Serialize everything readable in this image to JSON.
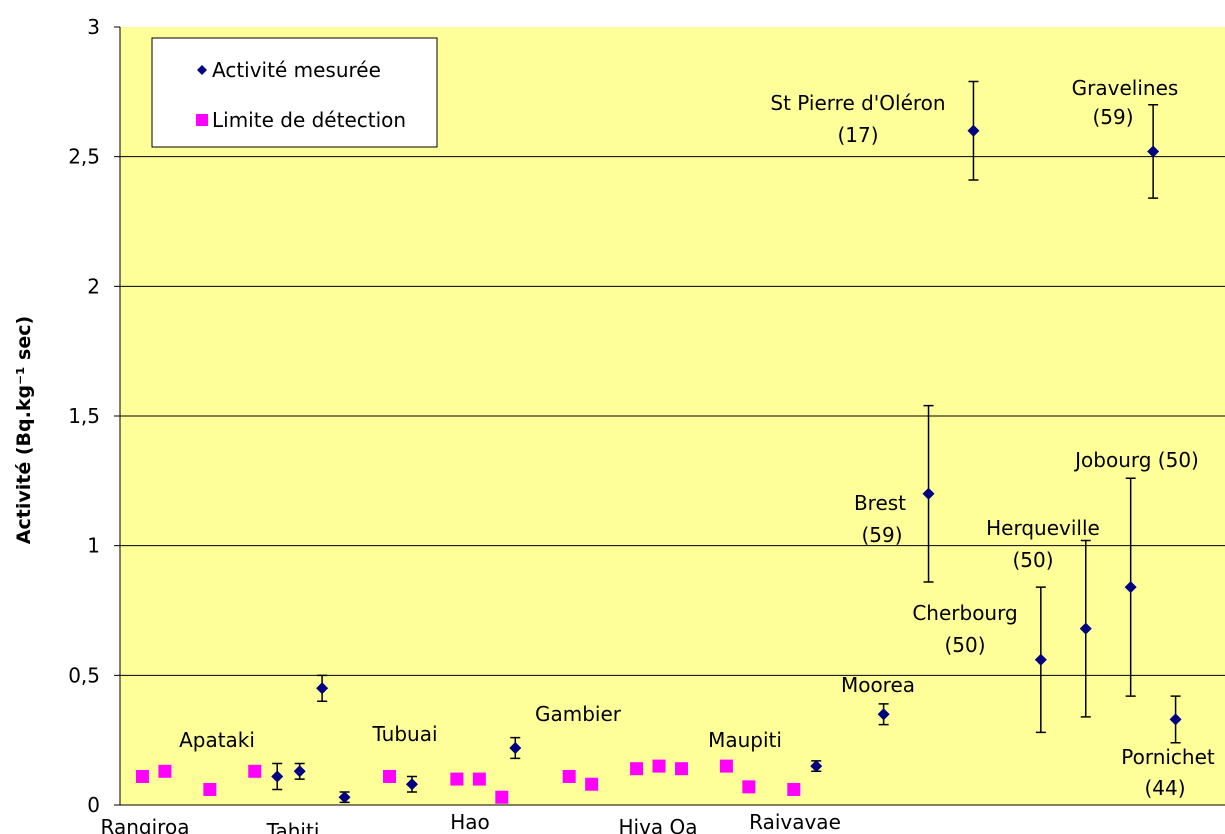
{
  "chart_data": {
    "type": "scatter",
    "y_label": "Activité (Bq.kg⁻¹ sec)",
    "ylim": [
      0,
      3
    ],
    "yticks": [
      0,
      {
        "value": 0.5,
        "label": "0,5"
      },
      1,
      {
        "value": 1.5,
        "label": "1,5"
      },
      2,
      {
        "value": 2.5,
        "label": "2,5"
      },
      3
    ],
    "xlim": [
      0,
      49.2
    ],
    "grid": true,
    "background": "#ffff99",
    "legend": "top-left",
    "series": [
      {
        "name": "Activité mesurée",
        "color": "#000080",
        "marker": "diamond",
        "x": [
          7,
          8,
          9,
          10,
          13,
          17.6,
          31,
          34,
          36,
          38,
          41,
          43,
          45,
          46,
          47
        ],
        "values": [
          0.11,
          0.13,
          0.45,
          0.03,
          0.08,
          0.22,
          0.15,
          0.35,
          1.2,
          2.6,
          0.56,
          0.68,
          0.84,
          2.52,
          0.33
        ],
        "errors": [
          0.05,
          0.03,
          0.05,
          0.02,
          0.03,
          0.04,
          0.02,
          0.04,
          0.34,
          0.19,
          0.28,
          0.34,
          0.42,
          0.18,
          0.09
        ]
      },
      {
        "name": "Limite de détection",
        "color": "#ff00ff",
        "marker": "square",
        "x": [
          1,
          2,
          4,
          6,
          12,
          15,
          16,
          17,
          20,
          21,
          23,
          24,
          25,
          27,
          28,
          30
        ],
        "values": [
          0.11,
          0.13,
          0.06,
          0.13,
          0.11,
          0.1,
          0.1,
          0.03,
          0.11,
          0.08,
          0.14,
          0.15,
          0.14,
          0.15,
          0.07,
          0.06
        ]
      }
    ],
    "annotations": [
      [
        "Apataki"
      ],
      [
        "Tubuai"
      ],
      [
        "Gambier"
      ],
      [
        "Maupiti"
      ],
      [
        "Moorea"
      ],
      [
        "Brest",
        "(59)"
      ],
      [
        "St Pierre d'Oléron",
        "(17)"
      ],
      [
        "Gravelines",
        "(59)"
      ],
      [
        "Jobourg (50)"
      ],
      [
        "Herqueville",
        "(50)"
      ],
      [
        "Cherbourg",
        "(50)"
      ],
      [
        "Pornichet",
        "(44)"
      ],
      [
        "Rangiroa"
      ],
      [
        "Tahiti"
      ],
      [
        "Hao"
      ],
      [
        "Hiva Oa"
      ],
      [
        "Raivavae"
      ]
    ]
  }
}
